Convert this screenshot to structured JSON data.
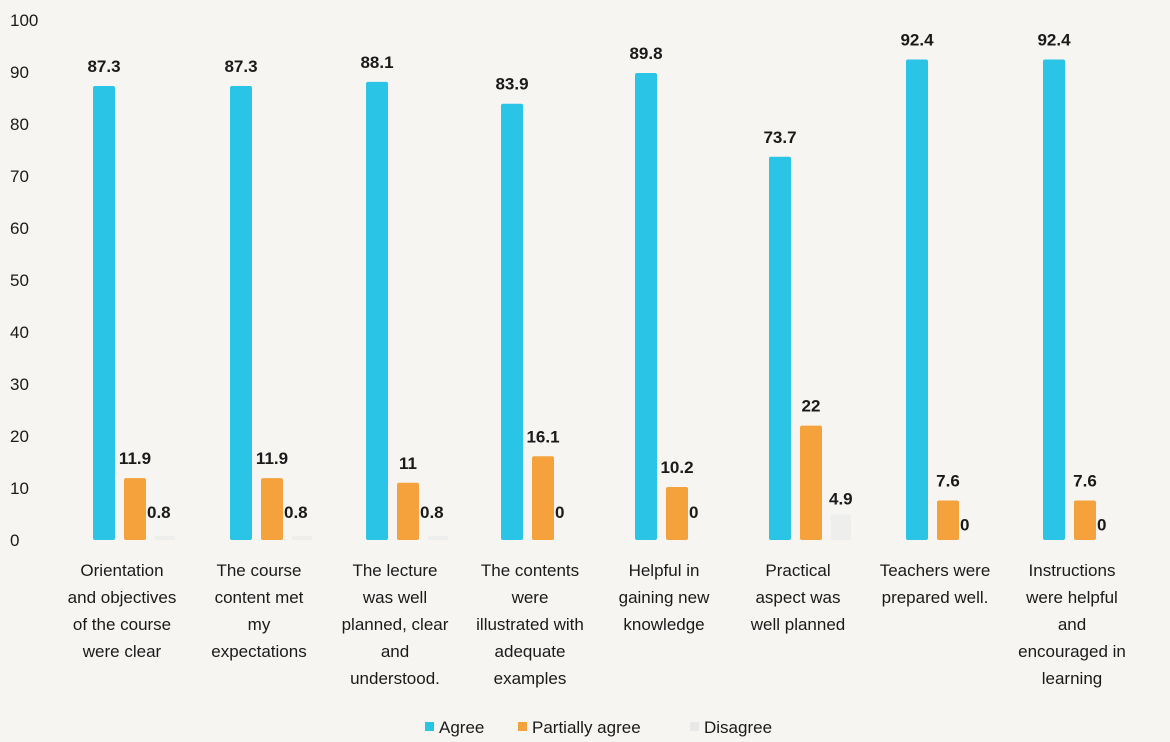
{
  "chart_data": {
    "type": "bar",
    "categories": [
      "Orientation and objectives of the course were clear",
      "The course content met my expectations",
      "The lecture was well planned, clear and understood.",
      "The contents were illustrated with adequate examples",
      "Helpful in gaining new knowledge",
      "Practical aspect was well planned",
      "Teachers were prepared well.",
      "Instructions were helpful and encouraged in learning"
    ],
    "category_lines": [
      [
        "Orientation",
        "and objectives",
        "of the course",
        "were clear"
      ],
      [
        "The course",
        "content met",
        "my",
        "expectations"
      ],
      [
        "The lecture",
        "was well",
        "planned, clear",
        "and",
        "understood."
      ],
      [
        "The contents",
        "were",
        "illustrated with",
        "adequate",
        "examples"
      ],
      [
        "Helpful in",
        "gaining new",
        "knowledge"
      ],
      [
        "Practical",
        "aspect was",
        "well planned"
      ],
      [
        "Teachers were",
        "prepared well."
      ],
      [
        "Instructions",
        "were helpful",
        "and",
        "encouraged in",
        "learning"
      ]
    ],
    "series": [
      {
        "name": "Agree",
        "color": "#29c4e6",
        "values": [
          87.3,
          87.3,
          88.1,
          83.9,
          89.8,
          73.7,
          92.4,
          92.4
        ],
        "labels": [
          "87.3",
          "87.3",
          "88.1",
          "83.9",
          "89.8",
          "73.7",
          "92.4",
          "92.4"
        ]
      },
      {
        "name": "Partially agree",
        "color": "#f5a13c",
        "values": [
          11.9,
          11.9,
          11,
          16.1,
          10.2,
          22,
          7.6,
          7.6
        ],
        "labels": [
          "11.9",
          "11.9",
          "11",
          "16.1",
          "10.2",
          "22",
          "7.6",
          "7.6"
        ]
      },
      {
        "name": "Disagree",
        "color": "#e8e8e8",
        "values": [
          0.8,
          0.8,
          0.8,
          0,
          0,
          4.9,
          0,
          0
        ],
        "labels": [
          "0.8",
          "0.8",
          "0.8",
          "0",
          "0",
          "4.9",
          "0",
          "0"
        ]
      }
    ],
    "yticks": [
      "0",
      "10",
      "20",
      "30",
      "40",
      "50",
      "60",
      "70",
      "80",
      "90",
      "100"
    ],
    "ylim": [
      0,
      100
    ],
    "grid": false,
    "legend_position": "bottom"
  }
}
